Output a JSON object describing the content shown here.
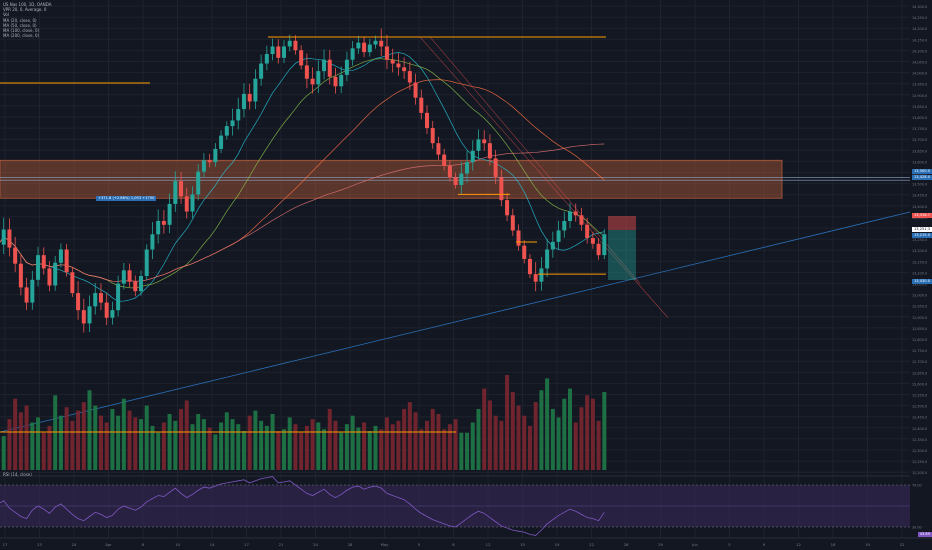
{
  "symbol": {
    "title": "US Nas 100, 1D, OANDA",
    "legend_lines": [
      "VPR 20, 0, Average, 0",
      "Vol",
      "MA (20, close, 0)",
      "MA (50, close, 0)",
      "MA (100, close, 0)",
      "MA (200, close, 0)"
    ]
  },
  "colors": {
    "background": "#131722",
    "up": "#26a69a",
    "down": "#ef5350",
    "resistance": "#ff9800",
    "zone": "#b25b3a",
    "trend": "#2a6fb5",
    "rsi_band": "#3a2a5c",
    "ma20": "#26c6da",
    "ma50": "#8bc34a",
    "ma100": "#ff7043",
    "ma200": "#e57373"
  },
  "annotation": {
    "label": "+371.8 (+2.86%) 1,053 +1750"
  },
  "x_axis_labels": [
    "17",
    "23",
    "24",
    "Apr",
    "8",
    "10",
    "14",
    "17",
    "21",
    "24",
    "28",
    "May",
    "5",
    "8",
    "12",
    "15",
    "19",
    "22",
    "26",
    "29",
    "Jun",
    "5",
    "9",
    "12",
    "16",
    "19",
    "22"
  ],
  "y_axis_labels": [
    "14,300.0",
    "14,250.0",
    "14,200.0",
    "14,150.0",
    "14,100.0",
    "14,050.0",
    "14,000.0",
    "13,950.0",
    "13,900.0",
    "13,850.0",
    "13,800.0",
    "13,750.0",
    "13,700.0",
    "13,650.0",
    "13,600.0",
    "13,550.0",
    "13,500.0",
    "13,450.0",
    "13,400.0",
    "13,350.0",
    "13,300.0",
    "13,250.0",
    "13,200.0",
    "13,150.0",
    "13,100.0",
    "13,050.0",
    "13,000.0",
    "12,950.0",
    "12,900.0",
    "12,850.0",
    "12,800.0",
    "12,750.0",
    "12,700.0",
    "12,650.0",
    "12,600.0",
    "12,550.0",
    "12,500.0",
    "12,450.0",
    "12,400.0",
    "12,350.0",
    "12,300.0",
    "12,250.0",
    "12,200.0"
  ],
  "price_tags": [
    {
      "text": "13,500.0",
      "color": "#2a6fb5"
    },
    {
      "text": "13,428.0",
      "color": "#2a6fb5"
    },
    {
      "text": "13,316.7",
      "color": "#ef5350"
    },
    {
      "text": "13,251.3",
      "color": "#ffffff"
    },
    {
      "text": "13,215.0",
      "color": "#2a6fb5"
    },
    {
      "text": "13,030.0",
      "color": "#2a6fb5"
    }
  ],
  "rsi": {
    "label": "RSI (14, close)",
    "value": "43.89",
    "upper": "70.00",
    "lower": "30.00"
  },
  "chart_data": {
    "type": "candlestick",
    "title": "",
    "series": [
      {
        "name": "US Nas 100",
        "values": [
          13205,
          13285,
          13190,
          13105,
          12980,
          12900,
          13020,
          13150,
          13080,
          12990,
          13110,
          13180,
          13060,
          12950,
          12860,
          12790,
          12880,
          12950,
          12900,
          12820,
          12860,
          13000,
          13070,
          13010,
          12960,
          13040,
          13180,
          13260,
          13330,
          13310,
          13420,
          13540,
          13460,
          13380,
          13470,
          13590,
          13650,
          13640,
          13710,
          13780,
          13830,
          13860,
          13920,
          14000,
          13960,
          14080,
          14160,
          14210,
          14250,
          14190,
          14250,
          14280,
          14230,
          14150,
          14080,
          14050,
          14120,
          14180,
          14090,
          14040,
          14100,
          14180,
          14240,
          14270,
          14220,
          14260,
          14280,
          14250,
          14180,
          14160,
          14140,
          14120,
          14060,
          13980,
          13900,
          13820,
          13740,
          13680,
          13620,
          13560,
          13520,
          13580,
          13640,
          13700,
          13760,
          13740,
          13660,
          13560,
          13440,
          13360,
          13280,
          13200,
          13130,
          13050,
          13010,
          13080,
          13180,
          13220,
          13280,
          13330,
          13380,
          13360,
          13310,
          13240,
          13210,
          13150,
          13260
        ]
      }
    ],
    "volume": [
      25,
      20,
      30,
      42,
      34,
      38,
      28,
      31,
      22,
      26,
      44,
      32,
      37,
      29,
      35,
      40,
      47,
      38,
      32,
      28,
      36,
      32,
      42,
      35,
      31,
      30,
      38,
      26,
      22,
      28,
      33,
      29,
      36,
      41,
      27,
      33,
      30,
      25,
      21,
      28,
      34,
      30,
      27,
      23,
      32,
      35,
      29,
      26,
      33,
      23,
      24,
      31,
      27,
      22,
      26,
      30,
      28,
      24,
      36,
      29,
      22,
      27,
      32,
      25,
      28,
      23,
      26,
      24,
      31,
      27,
      29,
      36,
      40,
      34,
      24,
      29,
      36,
      33,
      24,
      27,
      30,
      22,
      22,
      28,
      36,
      48,
      41,
      32,
      29,
      56,
      46,
      38,
      32,
      26,
      40,
      47,
      54,
      36,
      31,
      42,
      48,
      28,
      37,
      44,
      42,
      29,
      46
    ],
    "ylim": [
      12650,
      14400
    ],
    "resistance_levels": [
      14300,
      13950,
      13050
    ],
    "supply_zone": [
      13450,
      13650
    ],
    "rsi_values": [
      52,
      55,
      48,
      44,
      40,
      38,
      46,
      50,
      47,
      43,
      49,
      52,
      47,
      42,
      38,
      36,
      40,
      44,
      42,
      39,
      41,
      47,
      50,
      48,
      46,
      49,
      54,
      57,
      60,
      59,
      63,
      67,
      62,
      58,
      61,
      65,
      68,
      67,
      69,
      71,
      72,
      73,
      74,
      75,
      72,
      74,
      76,
      77,
      78,
      72,
      73,
      74,
      70,
      66,
      62,
      60,
      63,
      66,
      61,
      58,
      61,
      65,
      68,
      69,
      66,
      68,
      69,
      67,
      62,
      60,
      58,
      56,
      52,
      47,
      43,
      40,
      37,
      35,
      33,
      31,
      30,
      34,
      38,
      42,
      45,
      43,
      39,
      35,
      31,
      29,
      27,
      26,
      25,
      23,
      22,
      27,
      33,
      37,
      41,
      44,
      47,
      45,
      42,
      39,
      38,
      36,
      44
    ]
  }
}
